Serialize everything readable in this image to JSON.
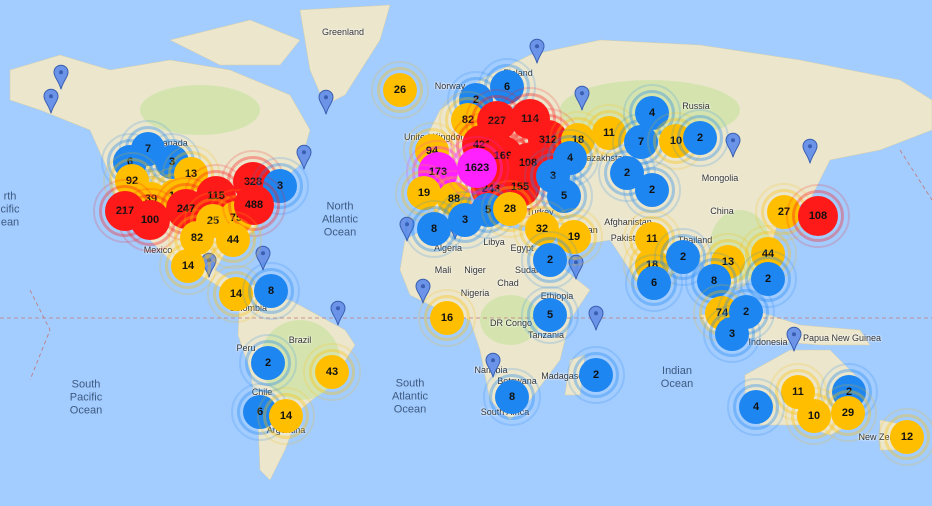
{
  "colors": {
    "ocean": "#a3ccff",
    "land": "#ebe6cc",
    "green": "#cfe3a8",
    "level_blue": "#1e86f0",
    "level_yellow": "#ffbf00",
    "level_red": "#ff1a1a",
    "level_magenta": "#ff22ff"
  },
  "labels": {
    "places": [
      "Greenland",
      "Canada",
      "United Kingdom",
      "Finland",
      "Russia",
      "Kazakhstan",
      "Mongolia",
      "China",
      "Afghanistan",
      "Pakistan",
      "Iran",
      "Turkey",
      "Algeria",
      "Libya",
      "Egypt",
      "Mali",
      "Niger",
      "Chad",
      "Sudan",
      "Nigeria",
      "Ethiopia",
      "DR Congo",
      "Tanzania",
      "Namibia",
      "Botswana",
      "South Africa",
      "Madagascar",
      "Mexico",
      "Colombia",
      "Peru",
      "Brazil",
      "Chile",
      "Argentina",
      "Indonesia",
      "Papua New Guinea",
      "New Zealand",
      "Thailand",
      "Norway"
    ],
    "oceans": [
      "North\nAtlantic\nOcean",
      "South\nAtlantic\nOcean",
      "South\nPacific\nOcean",
      "Indian\nOcean",
      "rth\ncific\nean"
    ]
  },
  "clusters": [
    {
      "count": "26",
      "level": "yellow"
    },
    {
      "count": "6",
      "level": "blue"
    },
    {
      "count": "2",
      "level": "blue"
    },
    {
      "count": "82",
      "level": "yellow"
    },
    {
      "count": "227",
      "level": "red"
    },
    {
      "count": "114",
      "level": "red"
    },
    {
      "count": "312",
      "level": "red"
    },
    {
      "count": "18",
      "level": "yellow"
    },
    {
      "count": "11",
      "level": "yellow"
    },
    {
      "count": "4",
      "level": "blue"
    },
    {
      "count": "7",
      "level": "blue"
    },
    {
      "count": "10",
      "level": "yellow"
    },
    {
      "count": "2",
      "level": "blue"
    },
    {
      "count": "94",
      "level": "yellow"
    },
    {
      "count": "421",
      "level": "red"
    },
    {
      "count": "169",
      "level": "red"
    },
    {
      "count": "108",
      "level": "red"
    },
    {
      "count": "4",
      "level": "blue"
    },
    {
      "count": "173",
      "level": "magenta"
    },
    {
      "count": "243",
      "level": "red"
    },
    {
      "count": "1623",
      "level": "magenta"
    },
    {
      "count": "155",
      "level": "red"
    },
    {
      "count": "3",
      "level": "blue"
    },
    {
      "count": "5",
      "level": "blue"
    },
    {
      "count": "19",
      "level": "yellow"
    },
    {
      "count": "88",
      "level": "yellow"
    },
    {
      "count": "5",
      "level": "blue"
    },
    {
      "count": "28",
      "level": "yellow"
    },
    {
      "count": "3",
      "level": "blue"
    },
    {
      "count": "8",
      "level": "blue"
    },
    {
      "count": "32",
      "level": "yellow"
    },
    {
      "count": "19",
      "level": "yellow"
    },
    {
      "count": "2",
      "level": "blue"
    },
    {
      "count": "2",
      "level": "blue"
    },
    {
      "count": "11",
      "level": "yellow"
    },
    {
      "count": "18",
      "level": "yellow"
    },
    {
      "count": "6",
      "level": "blue"
    },
    {
      "count": "2",
      "level": "blue"
    },
    {
      "count": "13",
      "level": "yellow"
    },
    {
      "count": "44",
      "level": "yellow"
    },
    {
      "count": "8",
      "level": "blue"
    },
    {
      "count": "2",
      "level": "blue"
    },
    {
      "count": "27",
      "level": "yellow"
    },
    {
      "count": "108",
      "level": "red"
    },
    {
      "count": "74",
      "level": "yellow"
    },
    {
      "count": "2",
      "level": "blue"
    },
    {
      "count": "3",
      "level": "blue"
    },
    {
      "count": "2",
      "level": "blue"
    },
    {
      "count": "5",
      "level": "blue"
    },
    {
      "count": "16",
      "level": "yellow"
    },
    {
      "count": "8",
      "level": "blue"
    },
    {
      "count": "2",
      "level": "blue"
    },
    {
      "count": "11",
      "level": "yellow"
    },
    {
      "count": "2",
      "level": "blue"
    },
    {
      "count": "4",
      "level": "blue"
    },
    {
      "count": "10",
      "level": "yellow"
    },
    {
      "count": "29",
      "level": "yellow"
    },
    {
      "count": "12",
      "level": "yellow"
    },
    {
      "count": "6",
      "level": "blue"
    },
    {
      "count": "7",
      "level": "blue"
    },
    {
      "count": "3",
      "level": "blue"
    },
    {
      "count": "13",
      "level": "yellow"
    },
    {
      "count": "92",
      "level": "yellow"
    },
    {
      "count": "328",
      "level": "red"
    },
    {
      "count": "3",
      "level": "blue"
    },
    {
      "count": "39",
      "level": "yellow"
    },
    {
      "count": "19",
      "level": "yellow"
    },
    {
      "count": "115",
      "level": "red"
    },
    {
      "count": "217",
      "level": "red"
    },
    {
      "count": "100",
      "level": "red"
    },
    {
      "count": "247",
      "level": "red"
    },
    {
      "count": "25",
      "level": "yellow"
    },
    {
      "count": "75",
      "level": "yellow"
    },
    {
      "count": "488",
      "level": "red"
    },
    {
      "count": "82",
      "level": "yellow"
    },
    {
      "count": "44",
      "level": "yellow"
    },
    {
      "count": "14",
      "level": "yellow"
    },
    {
      "count": "14",
      "level": "yellow"
    },
    {
      "count": "8",
      "level": "blue"
    },
    {
      "count": "2",
      "level": "blue"
    },
    {
      "count": "43",
      "level": "yellow"
    },
    {
      "count": "6",
      "level": "blue"
    },
    {
      "count": "14",
      "level": "yellow"
    }
  ],
  "pins": {
    "count": 18,
    "icon": "map-pin-icon",
    "color": "#6b93e8"
  }
}
